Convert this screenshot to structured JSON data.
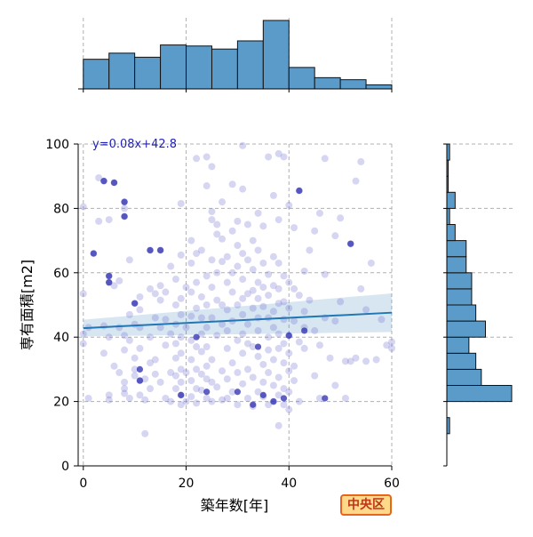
{
  "chart_data": {
    "type": "scatter",
    "title": "",
    "xlabel": "築年数[年]",
    "ylabel": "専有面積[m2]",
    "xlim": [
      -1,
      60
    ],
    "ylim": [
      0,
      100
    ],
    "x_ticks": [
      "0",
      "20",
      "40",
      "60"
    ],
    "y_ticks": [
      "0",
      "20",
      "40",
      "60",
      "80",
      "100"
    ],
    "grid": true,
    "regression": {
      "label": "y=0.08x+42.8",
      "slope": 0.08,
      "intercept": 42.8,
      "x_range": [
        0,
        60
      ],
      "ci_halfwidth_at_x0": 2.6,
      "ci_halfwidth_at_x60": 6.0
    },
    "badge": "中央区",
    "points": [
      [
        0,
        80.5
      ],
      [
        0,
        53.5
      ],
      [
        0,
        41
      ],
      [
        0,
        38
      ],
      [
        1,
        21
      ],
      [
        1,
        43
      ],
      [
        2,
        66
      ],
      [
        3,
        76
      ],
      [
        3,
        89.5
      ],
      [
        4,
        88.5
      ],
      [
        4,
        35
      ],
      [
        4,
        43.5
      ],
      [
        5,
        59
      ],
      [
        5,
        57
      ],
      [
        5,
        40
      ],
      [
        5,
        76.5
      ],
      [
        5,
        22
      ],
      [
        5,
        20.5
      ],
      [
        6,
        88
      ],
      [
        6,
        56
      ],
      [
        6,
        31
      ],
      [
        7,
        57.5
      ],
      [
        7,
        43
      ],
      [
        7,
        29
      ],
      [
        8,
        82
      ],
      [
        8,
        80
      ],
      [
        8,
        77.5
      ],
      [
        8,
        40.5
      ],
      [
        8,
        36
      ],
      [
        8,
        26
      ],
      [
        8,
        24
      ],
      [
        8,
        22.5
      ],
      [
        9,
        64
      ],
      [
        9,
        47
      ],
      [
        9,
        39
      ],
      [
        9,
        21
      ],
      [
        10,
        50.5
      ],
      [
        10,
        44
      ],
      [
        10,
        33.5
      ],
      [
        10,
        30
      ],
      [
        10,
        28
      ],
      [
        11,
        52.5
      ],
      [
        11,
        48.5
      ],
      [
        11,
        43
      ],
      [
        11,
        36.5
      ],
      [
        11,
        26.5
      ],
      [
        11,
        22
      ],
      [
        12,
        10
      ],
      [
        12,
        27
      ],
      [
        12,
        20.5
      ],
      [
        13,
        67
      ],
      [
        13,
        55
      ],
      [
        13,
        40
      ],
      [
        13,
        32
      ],
      [
        13,
        24
      ],
      [
        14,
        53.5
      ],
      [
        14,
        46
      ],
      [
        14,
        33
      ],
      [
        14,
        28.5
      ],
      [
        15,
        56
      ],
      [
        15,
        51.5
      ],
      [
        15,
        67
      ],
      [
        15,
        43
      ],
      [
        15,
        26
      ],
      [
        16,
        54
      ],
      [
        16,
        45.5
      ],
      [
        16,
        37.5
      ],
      [
        16,
        21
      ],
      [
        17,
        62
      ],
      [
        17,
        41
      ],
      [
        17,
        29
      ],
      [
        17,
        20
      ],
      [
        18,
        58
      ],
      [
        18,
        50
      ],
      [
        18,
        44
      ],
      [
        18,
        38
      ],
      [
        18,
        33.5
      ],
      [
        18,
        28
      ],
      [
        18,
        24
      ],
      [
        19,
        81.5
      ],
      [
        19,
        65.5
      ],
      [
        19,
        52
      ],
      [
        19,
        47
      ],
      [
        19,
        40
      ],
      [
        19,
        35
      ],
      [
        19,
        30
      ],
      [
        19,
        26
      ],
      [
        19,
        22
      ],
      [
        19,
        19
      ],
      [
        20,
        55.5
      ],
      [
        20,
        43
      ],
      [
        20,
        29
      ],
      [
        20,
        20
      ],
      [
        21,
        70
      ],
      [
        21,
        63
      ],
      [
        21,
        54
      ],
      [
        21,
        46.5
      ],
      [
        21,
        39
      ],
      [
        21,
        33
      ],
      [
        21,
        26.5
      ],
      [
        21,
        21.5
      ],
      [
        22,
        95.5
      ],
      [
        22,
        66
      ],
      [
        22,
        57
      ],
      [
        22,
        49
      ],
      [
        22,
        37
      ],
      [
        22,
        30
      ],
      [
        22,
        24
      ],
      [
        22,
        19.5
      ],
      [
        23,
        67
      ],
      [
        23,
        52.5
      ],
      [
        23,
        46
      ],
      [
        23,
        41
      ],
      [
        23,
        35.5
      ],
      [
        23,
        28.5
      ],
      [
        23,
        23.5
      ],
      [
        24,
        96
      ],
      [
        24,
        87
      ],
      [
        24,
        59
      ],
      [
        24,
        50
      ],
      [
        24,
        43
      ],
      [
        24,
        37
      ],
      [
        24,
        31
      ],
      [
        24,
        27
      ],
      [
        24,
        21
      ],
      [
        25,
        93
      ],
      [
        25,
        79
      ],
      [
        25,
        76.5
      ],
      [
        25,
        64
      ],
      [
        25,
        55.5
      ],
      [
        25,
        46
      ],
      [
        25,
        33
      ],
      [
        25,
        26
      ],
      [
        25,
        20
      ],
      [
        26,
        75
      ],
      [
        26,
        72
      ],
      [
        26,
        60
      ],
      [
        26,
        51.5
      ],
      [
        26,
        40.5
      ],
      [
        26,
        24.5
      ],
      [
        27,
        82
      ],
      [
        27,
        70.5
      ],
      [
        27,
        63.5
      ],
      [
        27,
        50
      ],
      [
        27,
        44
      ],
      [
        27,
        29.5
      ],
      [
        27,
        20.5
      ],
      [
        28,
        65
      ],
      [
        28,
        57
      ],
      [
        28,
        48.5
      ],
      [
        28,
        42
      ],
      [
        28,
        36.5
      ],
      [
        28,
        27
      ],
      [
        28,
        21
      ],
      [
        29,
        87.5
      ],
      [
        29,
        73
      ],
      [
        29,
        60
      ],
      [
        29,
        54
      ],
      [
        29,
        45
      ],
      [
        29,
        32
      ],
      [
        29,
        23
      ],
      [
        30,
        76
      ],
      [
        30,
        68.5
      ],
      [
        30,
        62
      ],
      [
        30,
        50
      ],
      [
        30,
        39
      ],
      [
        30,
        29
      ],
      [
        30,
        19
      ],
      [
        31,
        99.5
      ],
      [
        31,
        86
      ],
      [
        31,
        66
      ],
      [
        31,
        58
      ],
      [
        31,
        52
      ],
      [
        31,
        47
      ],
      [
        31,
        41
      ],
      [
        31,
        35
      ],
      [
        31,
        25.5
      ],
      [
        32,
        75
      ],
      [
        32,
        64
      ],
      [
        32,
        53.5
      ],
      [
        32,
        44
      ],
      [
        32,
        38
      ],
      [
        32,
        30
      ],
      [
        32,
        21
      ],
      [
        33,
        70
      ],
      [
        33,
        61
      ],
      [
        33,
        54.5
      ],
      [
        33,
        49
      ],
      [
        33,
        37
      ],
      [
        33,
        27.5
      ],
      [
        33,
        18.5
      ],
      [
        34,
        78.5
      ],
      [
        34,
        67
      ],
      [
        34,
        57
      ],
      [
        34,
        52
      ],
      [
        34,
        46
      ],
      [
        34,
        42
      ],
      [
        34,
        34
      ],
      [
        34,
        23
      ],
      [
        35,
        74.5
      ],
      [
        35,
        63
      ],
      [
        35,
        55.5
      ],
      [
        35,
        49.5
      ],
      [
        35,
        31.5
      ],
      [
        35,
        26
      ],
      [
        35,
        21.5
      ],
      [
        36,
        96
      ],
      [
        36,
        59.5
      ],
      [
        36,
        53
      ],
      [
        36,
        46
      ],
      [
        36,
        40
      ],
      [
        36,
        36
      ],
      [
        36,
        29
      ],
      [
        36,
        19
      ],
      [
        37,
        84
      ],
      [
        37,
        65
      ],
      [
        37,
        56
      ],
      [
        37,
        48
      ],
      [
        37,
        43
      ],
      [
        37,
        33
      ],
      [
        37,
        25
      ],
      [
        37,
        20
      ],
      [
        38,
        97
      ],
      [
        38,
        76.5
      ],
      [
        38,
        63
      ],
      [
        38,
        55
      ],
      [
        38,
        50.5
      ],
      [
        38,
        41
      ],
      [
        38,
        36.5
      ],
      [
        38,
        27.5
      ],
      [
        38,
        22
      ],
      [
        38,
        12.5
      ],
      [
        39,
        96
      ],
      [
        39,
        59
      ],
      [
        39,
        51
      ],
      [
        39,
        45.5
      ],
      [
        39,
        38
      ],
      [
        39,
        32
      ],
      [
        39,
        24
      ],
      [
        39,
        19
      ],
      [
        40,
        81
      ],
      [
        40,
        57
      ],
      [
        40,
        49
      ],
      [
        40,
        40.5
      ],
      [
        40,
        35
      ],
      [
        40,
        29.5
      ],
      [
        40,
        23
      ],
      [
        40,
        17.5
      ],
      [
        41,
        74
      ],
      [
        41,
        55
      ],
      [
        41,
        45
      ],
      [
        41,
        31
      ],
      [
        41,
        26.5
      ],
      [
        42,
        85.5
      ],
      [
        42,
        53
      ],
      [
        42,
        38.5
      ],
      [
        42,
        20
      ],
      [
        43,
        60.5
      ],
      [
        43,
        48
      ],
      [
        43,
        43
      ],
      [
        43,
        36.5
      ],
      [
        44,
        67
      ],
      [
        44,
        51.5
      ],
      [
        45,
        73
      ],
      [
        45,
        42
      ],
      [
        45,
        28
      ],
      [
        46,
        78.5
      ],
      [
        46,
        37.5
      ],
      [
        46,
        21
      ],
      [
        47,
        95.5
      ],
      [
        47,
        59.5
      ],
      [
        47,
        46
      ],
      [
        48,
        33.5
      ],
      [
        49,
        71.5
      ],
      [
        49,
        45
      ],
      [
        49,
        25
      ],
      [
        50,
        77
      ],
      [
        50,
        51
      ],
      [
        51,
        32.5
      ],
      [
        51,
        21
      ],
      [
        52,
        69
      ],
      [
        52,
        32.5
      ],
      [
        53,
        88.5
      ],
      [
        53,
        33.5
      ],
      [
        54,
        94.5
      ],
      [
        54,
        55
      ],
      [
        55,
        48.5
      ],
      [
        55,
        32.5
      ],
      [
        56,
        63
      ],
      [
        57,
        33
      ],
      [
        58,
        45.5
      ],
      [
        59,
        37.5
      ],
      [
        60,
        38.5
      ],
      [
        60,
        36.5
      ]
    ],
    "highlight_points": [
      [
        2,
        66
      ],
      [
        4,
        88.5
      ],
      [
        5,
        59
      ],
      [
        5,
        57
      ],
      [
        6,
        88
      ],
      [
        8,
        82
      ],
      [
        8,
        77.5
      ],
      [
        10,
        50.5
      ],
      [
        11,
        30
      ],
      [
        11,
        26.5
      ],
      [
        13,
        67
      ],
      [
        15,
        67
      ],
      [
        19,
        22
      ],
      [
        22,
        40
      ],
      [
        24,
        23
      ],
      [
        30,
        23
      ],
      [
        33,
        19
      ],
      [
        34,
        37
      ],
      [
        35,
        22
      ],
      [
        37,
        20
      ],
      [
        39,
        21
      ],
      [
        40,
        40.5
      ],
      [
        42,
        85.5
      ],
      [
        43,
        42
      ],
      [
        47,
        21
      ],
      [
        52,
        69
      ]
    ],
    "x_hist": {
      "bin_edges": [
        0,
        5,
        10,
        15,
        20,
        25,
        30,
        35,
        40,
        45,
        50,
        55,
        60
      ],
      "counts": [
        29,
        35,
        31,
        43,
        42,
        39,
        47,
        67,
        21,
        11,
        9,
        4
      ]
    },
    "y_hist": {
      "bin_edges": [
        10,
        15,
        20,
        25,
        30,
        35,
        40,
        45,
        50,
        55,
        60,
        65,
        70,
        75,
        80,
        85,
        90,
        95,
        100
      ],
      "counts": [
        2,
        0,
        47,
        25,
        21,
        16,
        28,
        21,
        18,
        18,
        14,
        14,
        6,
        2,
        6,
        1,
        1,
        2
      ]
    }
  }
}
